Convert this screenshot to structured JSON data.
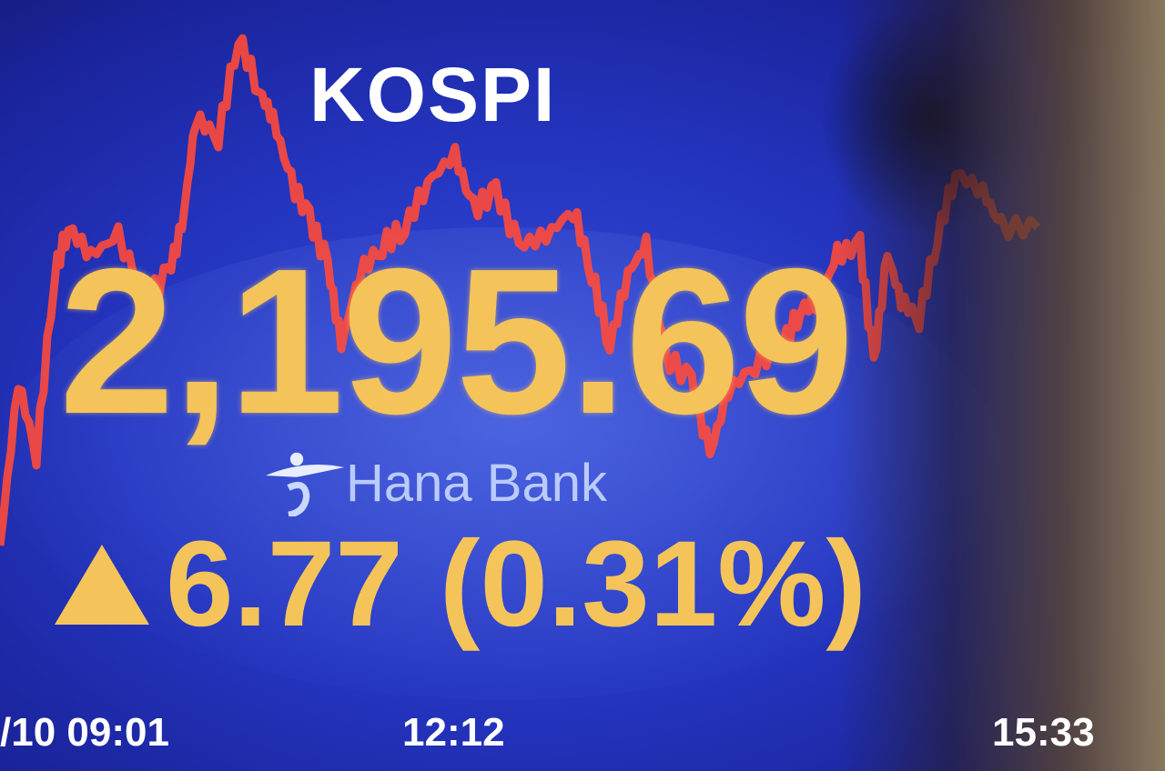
{
  "board": {
    "title": "KOSPI",
    "index_value": "2,195.69",
    "change_direction": "up-triangle-icon",
    "change_value": "6.77",
    "change_percent": "(0.31%)",
    "sponsor": "Hana Bank",
    "times": [
      "/10 09:01",
      "12:12",
      "15:33"
    ]
  },
  "colors": {
    "line": "#ff4a3a",
    "numbers": "#f4c45a",
    "background": "#2435c0"
  }
}
